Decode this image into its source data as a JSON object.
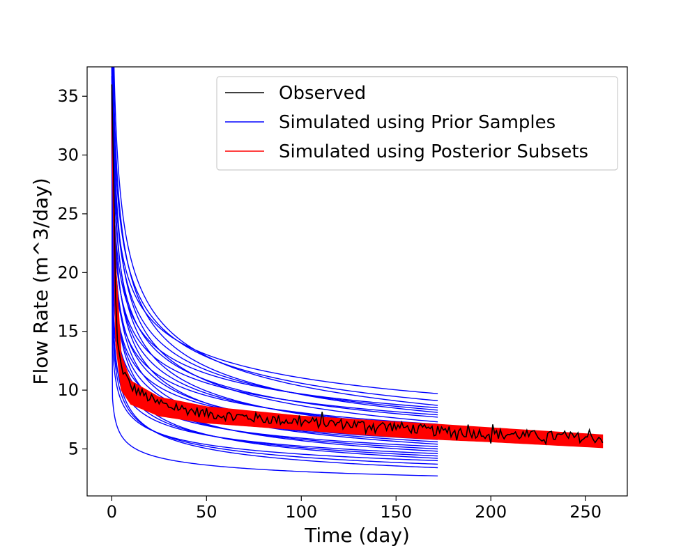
{
  "chart_data": {
    "type": "line",
    "xlabel": "Time (day)",
    "ylabel": "Flow Rate (m^3/day)",
    "xlim": [
      -13,
      272
    ],
    "ylim": [
      1.0,
      37.5
    ],
    "x_ticks": [
      0,
      50,
      100,
      150,
      200,
      250
    ],
    "y_ticks": [
      5,
      10,
      15,
      20,
      25,
      30,
      35
    ],
    "grid": false,
    "legend_position": "top-right",
    "legend": [
      {
        "label": "Observed",
        "color": "#000000"
      },
      {
        "label": "Simulated using Prior Samples",
        "color": "#0000ff"
      },
      {
        "label": "Simulated using Posterior Subsets",
        "color": "#ff0000"
      }
    ],
    "prior_samples": {
      "color": "#0000ff",
      "x_end": 172,
      "endpoint_values_at_x_end": [
        9.7,
        9.1,
        8.7,
        8.5,
        8.3,
        8.1,
        7.9,
        7.7,
        7.3,
        7.1,
        6.9,
        6.7,
        6.5,
        6.3,
        6.0,
        5.8,
        5.6,
        5.4,
        5.2,
        5.0,
        4.8,
        4.6,
        4.4,
        4.2,
        4.0,
        3.7,
        3.4,
        2.7
      ],
      "initial_value": 35.5
    },
    "posterior_subsets": {
      "color": "#ff0000",
      "x_end": 259,
      "band_upper": [
        [
          0,
          36.0
        ],
        [
          2,
          21.0
        ],
        [
          5,
          13.0
        ],
        [
          10,
          10.8
        ],
        [
          25,
          9.4
        ],
        [
          50,
          8.6
        ],
        [
          100,
          7.8
        ],
        [
          150,
          7.3
        ],
        [
          172,
          7.1
        ],
        [
          200,
          6.8
        ],
        [
          259,
          6.2
        ]
      ],
      "band_lower": [
        [
          0,
          32.0
        ],
        [
          2,
          14.0
        ],
        [
          5,
          10.0
        ],
        [
          10,
          8.8
        ],
        [
          25,
          7.8
        ],
        [
          50,
          7.2
        ],
        [
          100,
          6.6
        ],
        [
          150,
          6.0
        ],
        [
          172,
          5.8
        ],
        [
          200,
          5.6
        ],
        [
          259,
          5.1
        ]
      ]
    },
    "observed": {
      "color": "#000000",
      "x_end": 259,
      "trend": [
        [
          0,
          36.0
        ],
        [
          1,
          28.0
        ],
        [
          2,
          18.0
        ],
        [
          3,
          14.0
        ],
        [
          5,
          12.0
        ],
        [
          10,
          10.3
        ],
        [
          25,
          8.8
        ],
        [
          50,
          8.0
        ],
        [
          100,
          7.3
        ],
        [
          150,
          6.9
        ],
        [
          172,
          6.5
        ],
        [
          200,
          6.3
        ],
        [
          259,
          5.9
        ]
      ],
      "noise_amplitude": 0.45
    }
  }
}
